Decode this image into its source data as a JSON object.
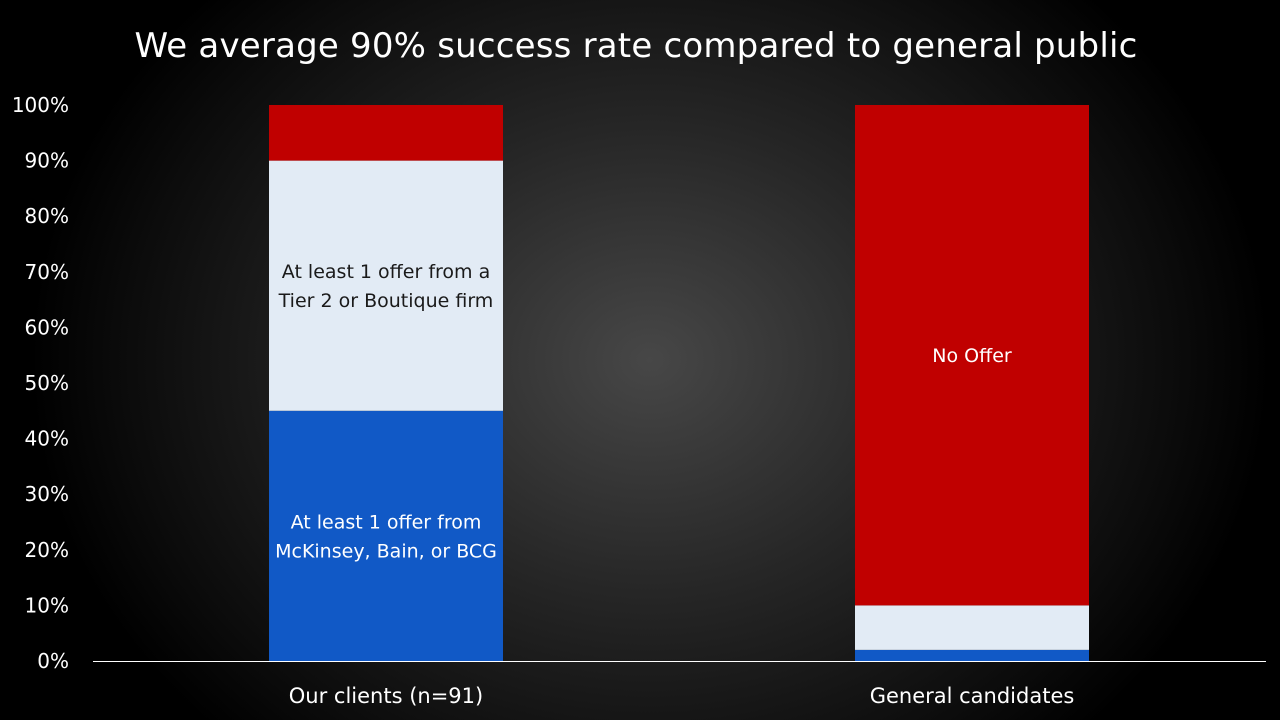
{
  "chart_data": {
    "type": "bar",
    "stacked": true,
    "title": "We average 90% success rate compared to general public",
    "categories": [
      "Our clients (n=91)",
      "General candidates"
    ],
    "series": [
      {
        "name": "At least 1 offer from McKinsey, Bain, or BCG",
        "label_lines": [
          "At least 1 offer from",
          "McKinsey, Bain, or BCG"
        ],
        "color": "#1159c6",
        "label_color": "#ffffff",
        "values": [
          45,
          2
        ]
      },
      {
        "name": "At least 1 offer from a Tier 2 or Boutique firm",
        "label_lines": [
          "At least 1 offer from a",
          "Tier 2 or Boutique firm"
        ],
        "color": "#e2ebf5",
        "label_color": "#1a1a1a",
        "values": [
          45,
          8
        ]
      },
      {
        "name": "No Offer",
        "label_lines": [
          "No Offer"
        ],
        "color": "#c00000",
        "label_color": "#ffffff",
        "values": [
          10,
          90
        ]
      }
    ],
    "segment_labels": [
      {
        "series": 0,
        "category": 0
      },
      {
        "series": 1,
        "category": 0
      },
      {
        "series": 2,
        "category": 1
      }
    ],
    "yticks": [
      "0%",
      "10%",
      "20%",
      "30%",
      "40%",
      "50%",
      "60%",
      "70%",
      "80%",
      "90%",
      "100%"
    ],
    "ylim": [
      0,
      100
    ],
    "xlabel": "",
    "ylabel": "",
    "grid": false,
    "legend": "none"
  }
}
